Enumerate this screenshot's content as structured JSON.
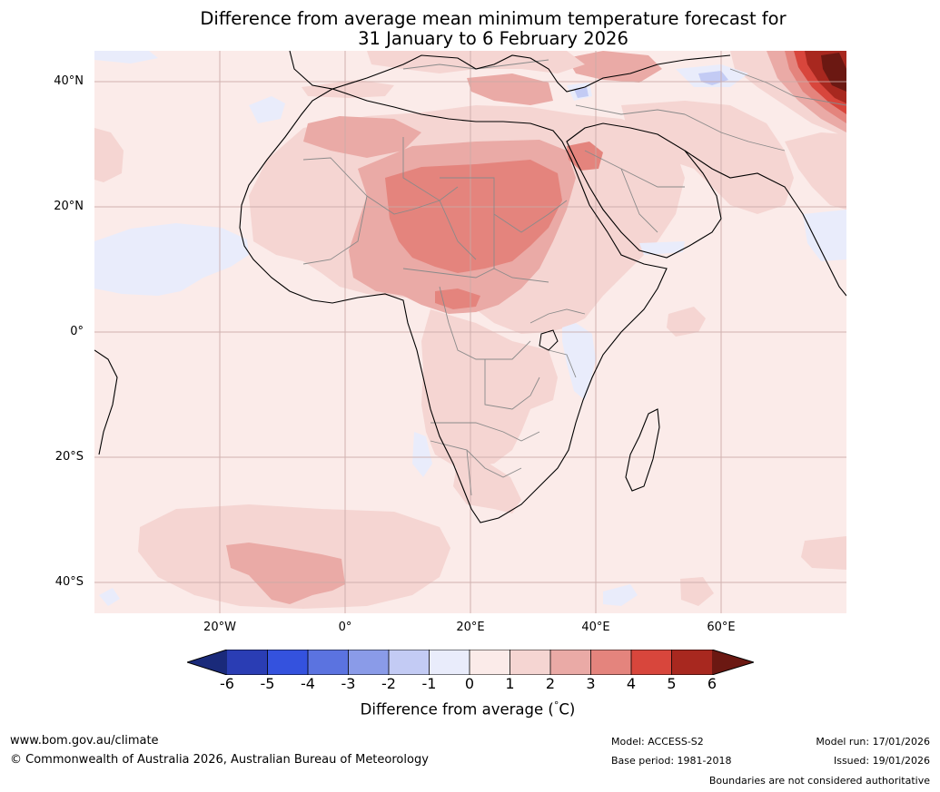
{
  "title": {
    "line1": "Difference from average mean minimum temperature forecast for",
    "line2": "31 January to 6 February 2026"
  },
  "axes": {
    "lat_labels": [
      "40°N",
      "20°N",
      "0°",
      "20°S",
      "40°S"
    ],
    "lon_labels": [
      "20°W",
      "0°",
      "20°E",
      "40°E",
      "60°E"
    ]
  },
  "legend": {
    "label": "Difference from average (°C)",
    "label_text": "Difference from average (",
    "label_degree": "°",
    "label_unit": "C)",
    "ticks": [
      "-6",
      "-5",
      "-4",
      "-3",
      "-2",
      "-1",
      "0",
      "1",
      "2",
      "3",
      "4",
      "5",
      "6"
    ],
    "colors": {
      "below_min": "#1a2a7a",
      "m6_m5": "#2a3db4",
      "m5_m4": "#3452de",
      "m4_m3": "#5b73e0",
      "m3_m2": "#8a9be8",
      "m2_m1": "#c3cbf4",
      "m1_0": "#e9ecfb",
      "0_1": "#fbebe9",
      "1_2": "#f5d5d2",
      "2_3": "#eaaaa6",
      "3_4": "#e4847d",
      "4_5": "#d8463c",
      "5_6": "#a8281f",
      "above_max": "#6b1812"
    }
  },
  "footer": {
    "website": "www.bom.gov.au/climate",
    "copyright": "© Commonwealth of Australia 2026, Australian Bureau of Meteorology",
    "model": "Model: ACCESS-S2",
    "base_period": "Base period: 1981-2018",
    "model_run": "Model run: 17/01/2026",
    "issued": "Issued: 19/01/2026",
    "disclaimer": "Boundaries are not considered authoritative"
  }
}
